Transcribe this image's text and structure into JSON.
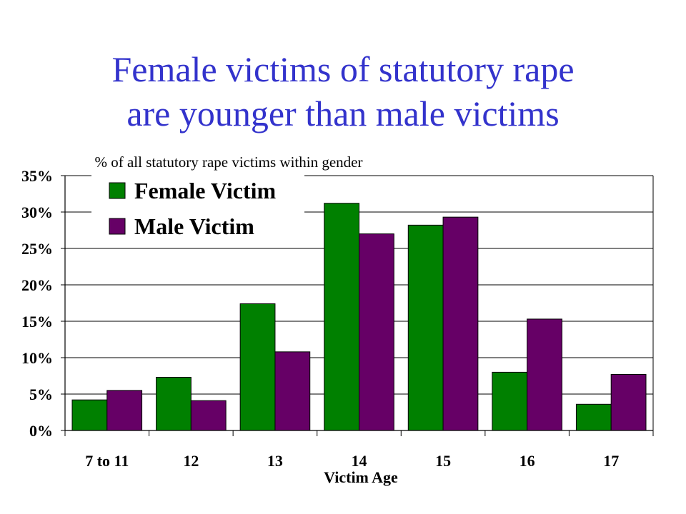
{
  "title_lines": [
    "Female victims of statutory rape",
    "are younger than male victims"
  ],
  "colors": {
    "title": "#3333cc",
    "female": "#008000",
    "male": "#660066",
    "grid": "#000000"
  },
  "chart_data": {
    "type": "bar",
    "title": "% of all statutory rape victims within gender",
    "xlabel": "Victim Age",
    "ylabel": "",
    "ylim": [
      0,
      35
    ],
    "yticks": [
      "0%",
      "5%",
      "10%",
      "15%",
      "20%",
      "25%",
      "30%",
      "35%"
    ],
    "grid": true,
    "legend_position": "top-left",
    "categories": [
      "7 to 11",
      "12",
      "13",
      "14",
      "15",
      "16",
      "17"
    ],
    "series": [
      {
        "name": "Female Victim",
        "values": [
          4.2,
          7.3,
          17.4,
          31.2,
          28.2,
          8.0,
          3.6
        ]
      },
      {
        "name": "Male Victim",
        "values": [
          5.5,
          4.1,
          10.8,
          27.0,
          29.3,
          15.3,
          7.7
        ]
      }
    ]
  }
}
